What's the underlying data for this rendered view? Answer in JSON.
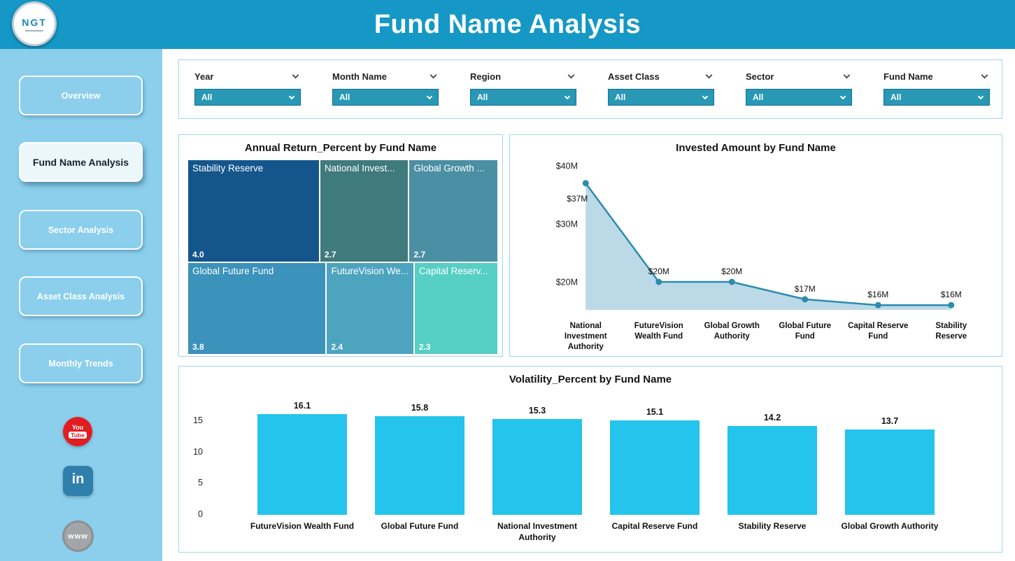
{
  "header": {
    "title": "Fund Name Analysis",
    "logo_text": "NGT"
  },
  "sidebar": {
    "items": [
      {
        "label": "Overview",
        "active": false
      },
      {
        "label": "Fund Name Analysis",
        "active": true
      },
      {
        "label": "Sector Analysis",
        "active": false
      },
      {
        "label": "Asset Class Analysis",
        "active": false
      },
      {
        "label": "Monthly Trends",
        "active": false
      }
    ],
    "social": {
      "youtube_line1": "You",
      "youtube_line2": "Tube",
      "linkedin_text": "in",
      "website_text": "www"
    }
  },
  "filters": [
    {
      "label": "Year",
      "value": "All"
    },
    {
      "label": "Month Name",
      "value": "All"
    },
    {
      "label": "Region",
      "value": "All"
    },
    {
      "label": "Asset Class",
      "value": "All"
    },
    {
      "label": "Sector",
      "value": "All"
    },
    {
      "label": "Fund Name",
      "value": "All"
    }
  ],
  "colors": {
    "header_teal": "#1598c6",
    "sidebar_blue": "#8bcfec",
    "dropdown_teal": "#2898b5",
    "card_border": "#9ed7e9",
    "bar_cyan": "#24c4ec",
    "line_teal": "#2c8cac"
  },
  "chart_data": [
    {
      "type": "treemap",
      "title": "Annual Return_Percent by Fund Name",
      "items": [
        {
          "label": "Stability Reserve",
          "value": 4.0,
          "value_label": "4.0",
          "color": "#14568c",
          "row": 0
        },
        {
          "label": "National Invest...",
          "value": 2.7,
          "value_label": "2.7",
          "color": "#3f7a7c",
          "row": 0
        },
        {
          "label": "Global Growth ...",
          "value": 2.7,
          "value_label": "2.7",
          "color": "#4a8fa3",
          "row": 0
        },
        {
          "label": "Global Future Fund",
          "value": 3.8,
          "value_label": "3.8",
          "color": "#3b92bb",
          "row": 1
        },
        {
          "label": "FutureVision We...",
          "value": 2.4,
          "value_label": "2.4",
          "color": "#4da4bf",
          "row": 1
        },
        {
          "label": "Capital Reserv...",
          "value": 2.3,
          "value_label": "2.3",
          "color": "#56cfc4",
          "row": 1
        }
      ]
    },
    {
      "type": "line",
      "title": "Invested Amount by Fund Name",
      "categories": [
        "National Investment Authority",
        "FutureVision Wealth Fund",
        "Global Growth Authority",
        "Global Future Fund",
        "Capital Reserve Fund",
        "Stability Reserve"
      ],
      "values": [
        37,
        20,
        20,
        17,
        16,
        16
      ],
      "labels": [
        "$37M",
        "$20M",
        "$20M",
        "$17M",
        "$16M",
        "$16M"
      ],
      "yticks": [
        {
          "value": 20,
          "label": "$20M"
        },
        {
          "value": 30,
          "label": "$30M"
        },
        {
          "value": 40,
          "label": "$40M"
        }
      ],
      "ylim": [
        14,
        42
      ],
      "grid": false,
      "line_color": "#2c8cac",
      "area_color": "#bcd9e8"
    },
    {
      "type": "bar",
      "title": "Volatility_Percent by Fund Name",
      "categories": [
        "FutureVision Wealth Fund",
        "Global Future Fund",
        "National Investment Authority",
        "Capital Reserve Fund",
        "Stability Reserve",
        "Global Growth Authority"
      ],
      "values": [
        16.1,
        15.8,
        15.3,
        15.1,
        14.2,
        13.7
      ],
      "value_labels": [
        "16.1",
        "15.8",
        "15.3",
        "15.1",
        "14.2",
        "13.7"
      ],
      "yticks": [
        0,
        5,
        10,
        15
      ],
      "ylim": [
        0,
        17
      ],
      "grid": false,
      "bar_color": "#24c4ec"
    }
  ]
}
